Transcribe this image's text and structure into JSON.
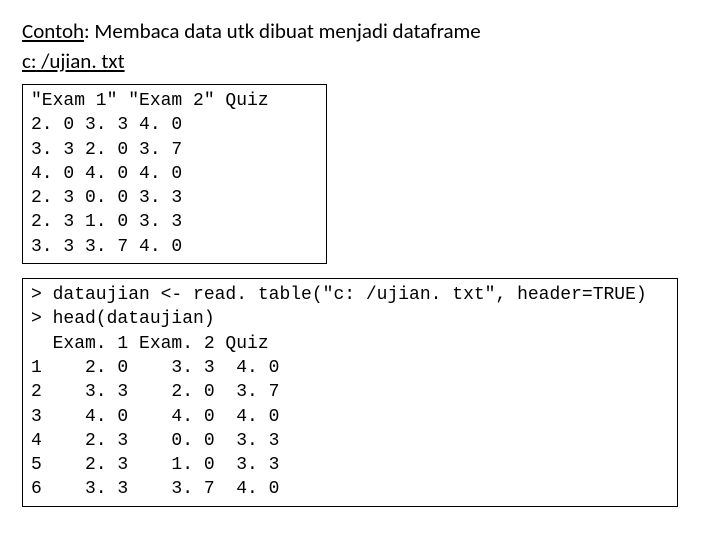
{
  "title_prefix": "Contoh",
  "title_rest": ": Membaca data utk dibuat menjadi dataframe",
  "subtitle": "c: /ujian. txt",
  "file_box": {
    "border_color": "#000000",
    "background_color": "#ffffff",
    "font_family": "Courier New",
    "font_size_pt": 14,
    "header": "\"Exam 1\" \"Exam 2\" Quiz",
    "rows": [
      "2. 0 3. 3 4. 0",
      "3. 3 2. 0 3. 7",
      "4. 0 4. 0 4. 0",
      "2. 3 0. 0 3. 3",
      "2. 3 1. 0 3. 3",
      "3. 3 3. 7 4. 0"
    ]
  },
  "console_box": {
    "border_color": "#000000",
    "background_color": "#ffffff",
    "font_family": "Courier New",
    "font_size_pt": 14,
    "lines": [
      "> dataujian <- read. table(\"c: /ujian. txt\", header=TRUE)",
      "> head(dataujian)",
      "  Exam. 1 Exam. 2 Quiz",
      "1    2. 0    3. 3  4. 0",
      "2    3. 3    2. 0  3. 7",
      "3    4. 0    4. 0  4. 0",
      "4    2. 3    0. 0  3. 3",
      "5    2. 3    1. 0  3. 3",
      "6    3. 3    3. 7  4. 0"
    ]
  }
}
